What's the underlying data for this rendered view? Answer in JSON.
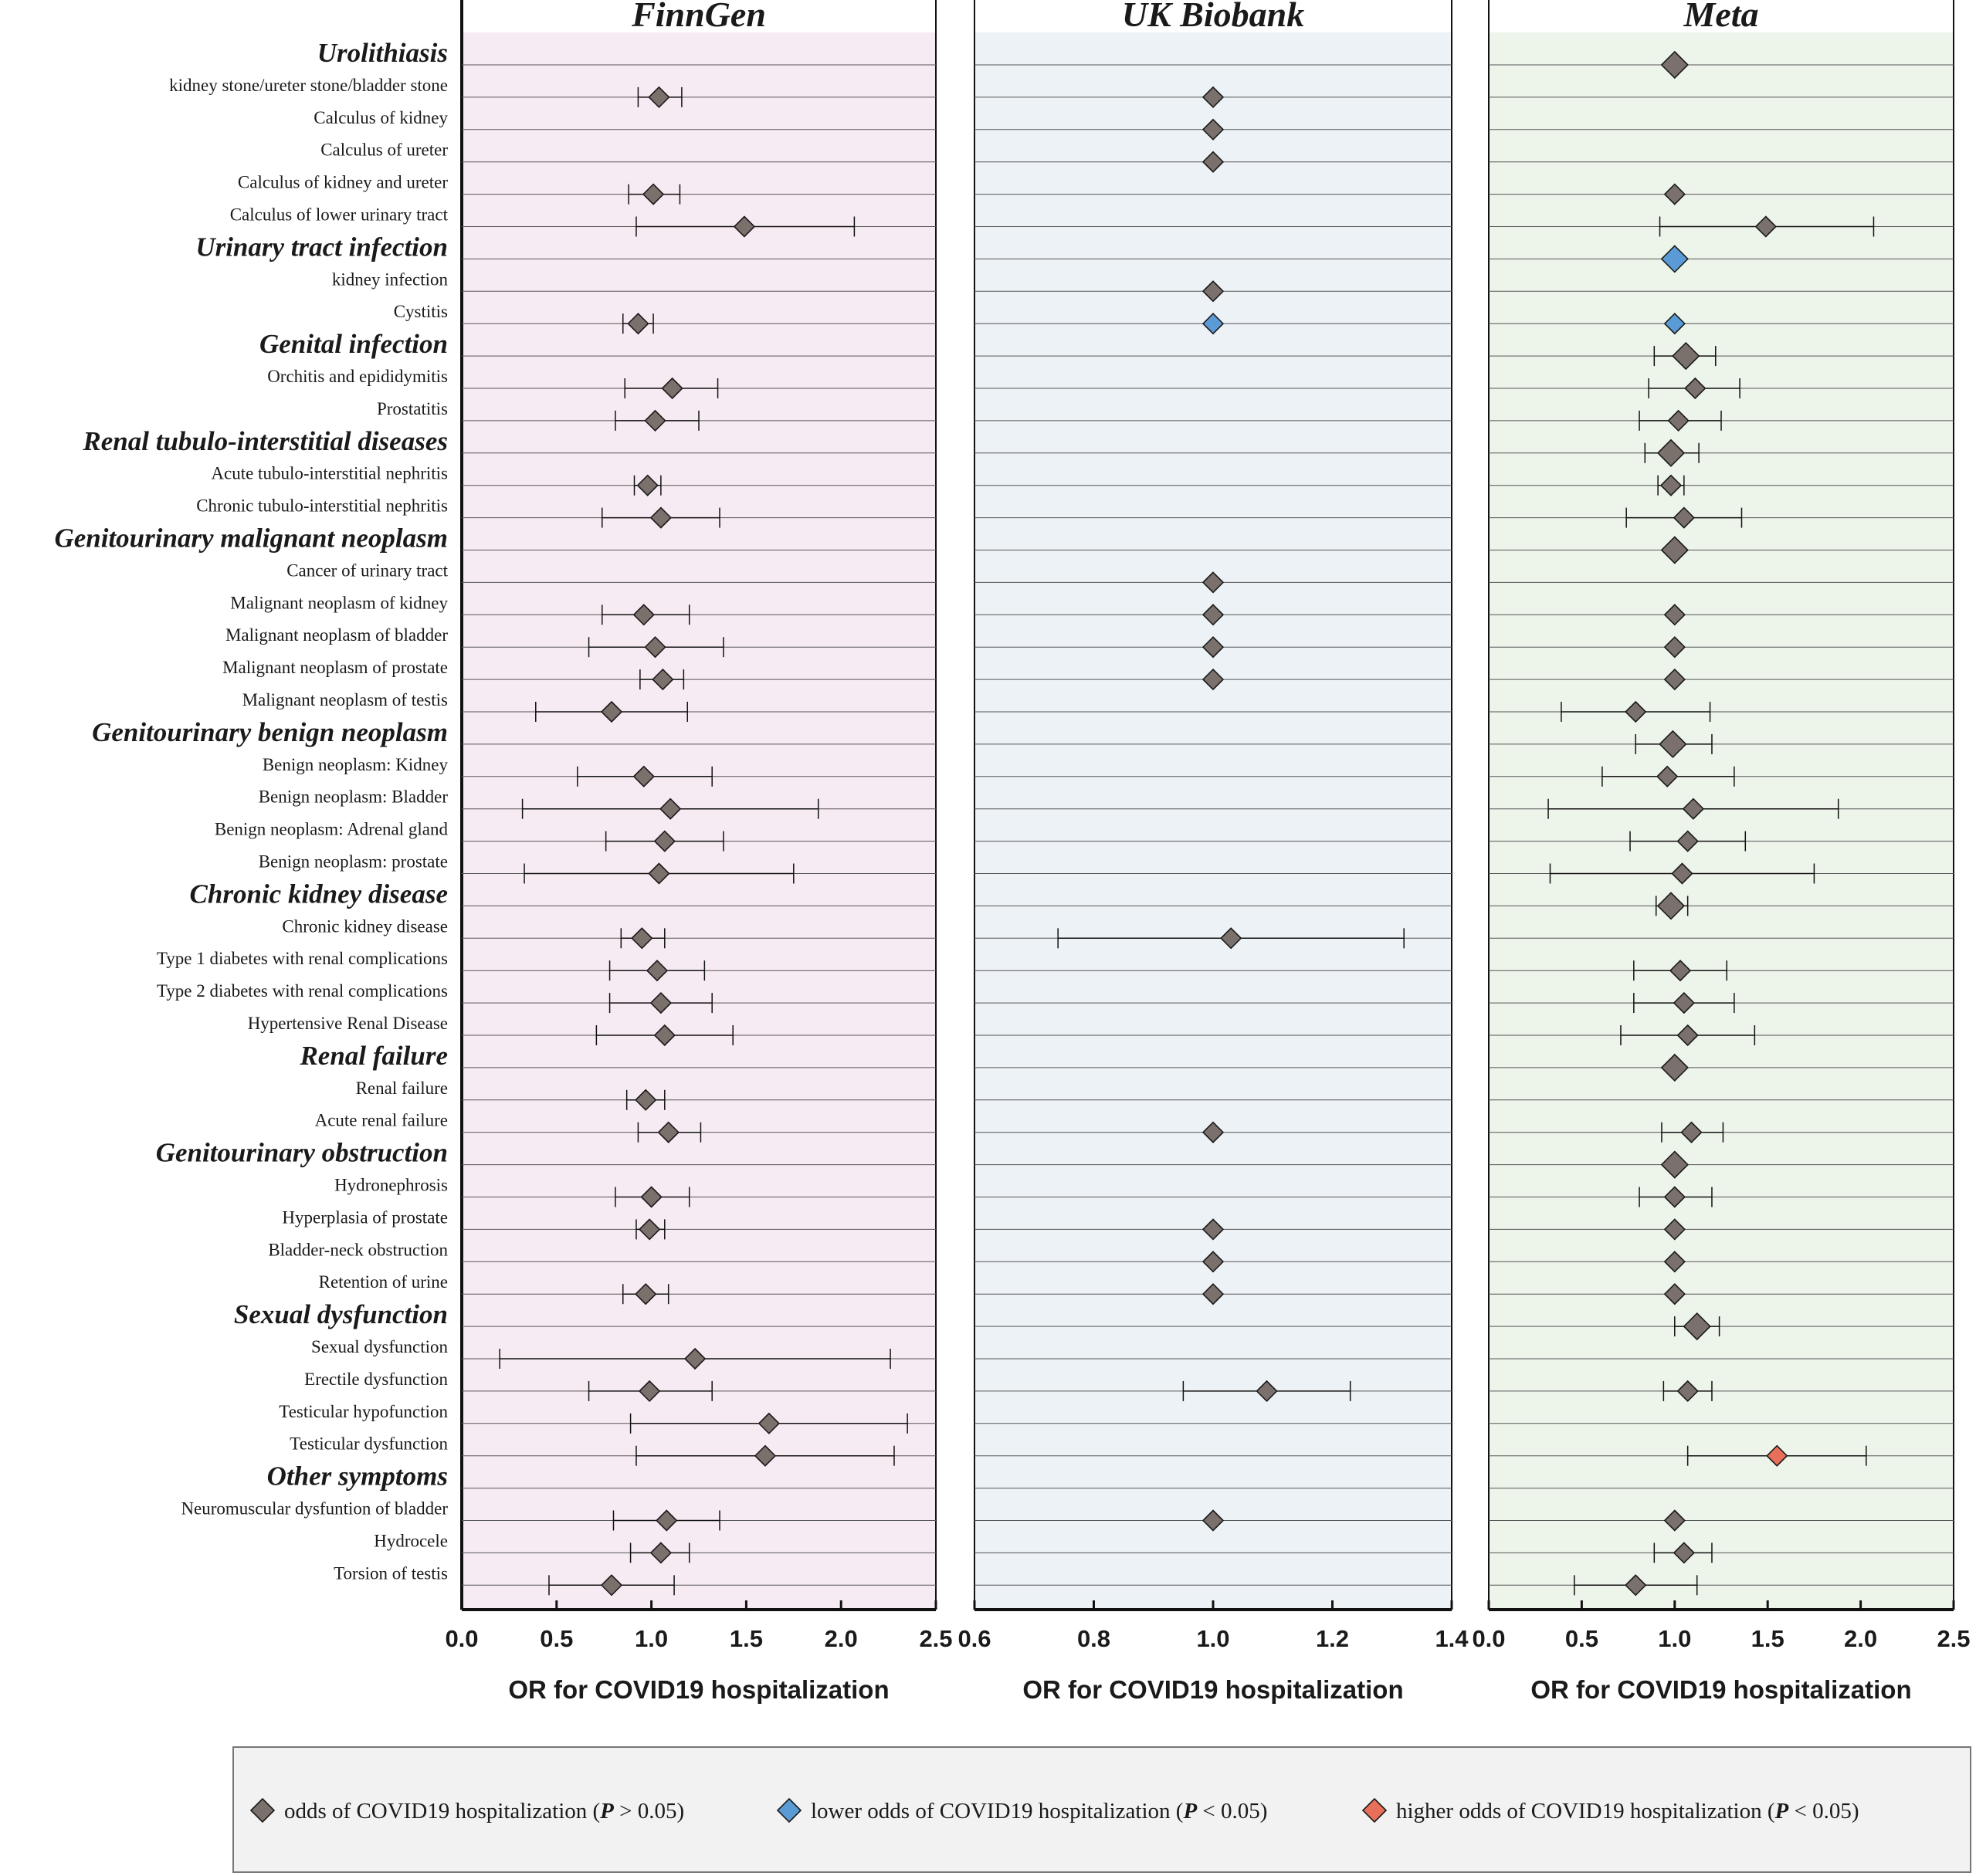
{
  "chart_data": {
    "type": "forest",
    "axis_title": "OR for COVID19 hospitalization",
    "colors": {
      "ns": "#7a716c",
      "lower": "#5b9bd5",
      "higher": "#e8705a",
      "panel_bg": [
        "#f7ebf3",
        "#ecf2f6",
        "#edf4ea"
      ],
      "legend_bg": "#f2f2f2"
    },
    "panels": [
      {
        "title": "FinnGen",
        "xlim": [
          0,
          2.5
        ],
        "ticks": [
          "0.0",
          "0.5",
          "1.0",
          "1.5",
          "2.0",
          "2.5"
        ]
      },
      {
        "title": "UK Biobank",
        "xlim": [
          0.6,
          1.4
        ],
        "ticks": [
          "0.6",
          "0.8",
          "1.0",
          "1.2",
          "1.4"
        ]
      },
      {
        "title": "Meta",
        "xlim": [
          0,
          2.5
        ],
        "ticks": [
          "0.0",
          "0.5",
          "1.0",
          "1.5",
          "2.0",
          "2.5"
        ]
      }
    ],
    "rows": [
      {
        "label": "Urolithiasis",
        "category": true,
        "data": [
          null,
          null,
          {
            "or": 1.0,
            "lo": 1.0,
            "hi": 1.0,
            "sig": "ns"
          }
        ]
      },
      {
        "label": "kidney stone/ureter stone/bladder stone",
        "data": [
          {
            "or": 1.04,
            "lo": 0.93,
            "hi": 1.16,
            "sig": "ns"
          },
          {
            "or": 1.0,
            "lo": 1.0,
            "hi": 1.0,
            "sig": "ns"
          },
          null
        ]
      },
      {
        "label": "Calculus of kidney",
        "data": [
          null,
          {
            "or": 1.0,
            "lo": 1.0,
            "hi": 1.0,
            "sig": "ns"
          },
          null
        ]
      },
      {
        "label": "Calculus of ureter",
        "data": [
          null,
          {
            "or": 1.0,
            "lo": 1.0,
            "hi": 1.0,
            "sig": "ns"
          },
          null
        ]
      },
      {
        "label": "Calculus of kidney and ureter",
        "data": [
          {
            "or": 1.01,
            "lo": 0.88,
            "hi": 1.15,
            "sig": "ns"
          },
          null,
          {
            "or": 1.0,
            "lo": 1.0,
            "hi": 1.0,
            "sig": "ns"
          }
        ]
      },
      {
        "label": "Calculus of lower urinary tract",
        "data": [
          {
            "or": 1.49,
            "lo": 0.92,
            "hi": 2.07,
            "sig": "ns"
          },
          null,
          {
            "or": 1.49,
            "lo": 0.92,
            "hi": 2.07,
            "sig": "ns"
          }
        ]
      },
      {
        "label": "Urinary tract infection",
        "category": true,
        "data": [
          null,
          null,
          {
            "or": 1.0,
            "lo": 1.0,
            "hi": 1.0,
            "sig": "lower"
          }
        ]
      },
      {
        "label": "kidney infection",
        "data": [
          null,
          {
            "or": 1.0,
            "lo": 1.0,
            "hi": 1.0,
            "sig": "ns"
          },
          null
        ]
      },
      {
        "label": "Cystitis",
        "data": [
          {
            "or": 0.93,
            "lo": 0.85,
            "hi": 1.01,
            "sig": "ns"
          },
          {
            "or": 1.0,
            "lo": 1.0,
            "hi": 1.0,
            "sig": "lower"
          },
          {
            "or": 1.0,
            "lo": 1.0,
            "hi": 1.0,
            "sig": "lower"
          }
        ]
      },
      {
        "label": "Genital infection",
        "category": true,
        "data": [
          null,
          null,
          {
            "or": 1.06,
            "lo": 0.89,
            "hi": 1.22,
            "sig": "ns"
          }
        ]
      },
      {
        "label": "Orchitis and epididymitis",
        "data": [
          {
            "or": 1.11,
            "lo": 0.86,
            "hi": 1.35,
            "sig": "ns"
          },
          null,
          {
            "or": 1.11,
            "lo": 0.86,
            "hi": 1.35,
            "sig": "ns"
          }
        ]
      },
      {
        "label": "Prostatitis",
        "data": [
          {
            "or": 1.02,
            "lo": 0.81,
            "hi": 1.25,
            "sig": "ns"
          },
          null,
          {
            "or": 1.02,
            "lo": 0.81,
            "hi": 1.25,
            "sig": "ns"
          }
        ]
      },
      {
        "label": "Renal tubulo-interstitial diseases",
        "category": true,
        "data": [
          null,
          null,
          {
            "or": 0.98,
            "lo": 0.84,
            "hi": 1.13,
            "sig": "ns"
          }
        ]
      },
      {
        "label": "Acute tubulo-interstitial nephritis",
        "data": [
          {
            "or": 0.98,
            "lo": 0.91,
            "hi": 1.05,
            "sig": "ns"
          },
          null,
          {
            "or": 0.98,
            "lo": 0.91,
            "hi": 1.05,
            "sig": "ns"
          }
        ]
      },
      {
        "label": "Chronic tubulo-interstitial nephritis",
        "data": [
          {
            "or": 1.05,
            "lo": 0.74,
            "hi": 1.36,
            "sig": "ns"
          },
          null,
          {
            "or": 1.05,
            "lo": 0.74,
            "hi": 1.36,
            "sig": "ns"
          }
        ]
      },
      {
        "label": "Genitourinary malignant neoplasm",
        "category": true,
        "data": [
          null,
          null,
          {
            "or": 1.0,
            "lo": 1.0,
            "hi": 1.0,
            "sig": "ns"
          }
        ]
      },
      {
        "label": "Cancer of urinary tract",
        "data": [
          null,
          {
            "or": 1.0,
            "lo": 1.0,
            "hi": 1.0,
            "sig": "ns"
          },
          null
        ]
      },
      {
        "label": "Malignant neoplasm of kidney",
        "data": [
          {
            "or": 0.96,
            "lo": 0.74,
            "hi": 1.2,
            "sig": "ns"
          },
          {
            "or": 1.0,
            "lo": 1.0,
            "hi": 1.0,
            "sig": "ns"
          },
          {
            "or": 1.0,
            "lo": 1.0,
            "hi": 1.0,
            "sig": "ns"
          }
        ]
      },
      {
        "label": "Malignant neoplasm of bladder",
        "data": [
          {
            "or": 1.02,
            "lo": 0.67,
            "hi": 1.38,
            "sig": "ns"
          },
          {
            "or": 1.0,
            "lo": 1.0,
            "hi": 1.0,
            "sig": "ns"
          },
          {
            "or": 1.0,
            "lo": 1.0,
            "hi": 1.0,
            "sig": "ns"
          }
        ]
      },
      {
        "label": "Malignant neoplasm of prostate",
        "data": [
          {
            "or": 1.06,
            "lo": 0.94,
            "hi": 1.17,
            "sig": "ns"
          },
          {
            "or": 1.0,
            "lo": 1.0,
            "hi": 1.0,
            "sig": "ns"
          },
          {
            "or": 1.0,
            "lo": 1.0,
            "hi": 1.0,
            "sig": "ns"
          }
        ]
      },
      {
        "label": "Malignant neoplasm of testis",
        "data": [
          {
            "or": 0.79,
            "lo": 0.39,
            "hi": 1.19,
            "sig": "ns"
          },
          null,
          {
            "or": 0.79,
            "lo": 0.39,
            "hi": 1.19,
            "sig": "ns"
          }
        ]
      },
      {
        "label": "Genitourinary benign neoplasm",
        "category": true,
        "data": [
          null,
          null,
          {
            "or": 0.99,
            "lo": 0.79,
            "hi": 1.2,
            "sig": "ns"
          }
        ]
      },
      {
        "label": "Benign neoplasm: Kidney",
        "data": [
          {
            "or": 0.96,
            "lo": 0.61,
            "hi": 1.32,
            "sig": "ns"
          },
          null,
          {
            "or": 0.96,
            "lo": 0.61,
            "hi": 1.32,
            "sig": "ns"
          }
        ]
      },
      {
        "label": "Benign neoplasm: Bladder",
        "data": [
          {
            "or": 1.1,
            "lo": 0.32,
            "hi": 1.88,
            "sig": "ns"
          },
          null,
          {
            "or": 1.1,
            "lo": 0.32,
            "hi": 1.88,
            "sig": "ns"
          }
        ]
      },
      {
        "label": "Benign neoplasm: Adrenal gland",
        "data": [
          {
            "or": 1.07,
            "lo": 0.76,
            "hi": 1.38,
            "sig": "ns"
          },
          null,
          {
            "or": 1.07,
            "lo": 0.76,
            "hi": 1.38,
            "sig": "ns"
          }
        ]
      },
      {
        "label": "Benign neoplasm: prostate",
        "data": [
          {
            "or": 1.04,
            "lo": 0.33,
            "hi": 1.75,
            "sig": "ns"
          },
          null,
          {
            "or": 1.04,
            "lo": 0.33,
            "hi": 1.75,
            "sig": "ns"
          }
        ]
      },
      {
        "label": "Chronic kidney disease",
        "category": true,
        "data": [
          null,
          null,
          {
            "or": 0.98,
            "lo": 0.9,
            "hi": 1.07,
            "sig": "ns"
          }
        ]
      },
      {
        "label": "Chronic kidney disease",
        "data": [
          {
            "or": 0.95,
            "lo": 0.84,
            "hi": 1.07,
            "sig": "ns"
          },
          {
            "or": 1.03,
            "lo": 0.74,
            "hi": 1.32,
            "sig": "ns"
          },
          null
        ]
      },
      {
        "label": "Type 1 diabetes with renal complications",
        "data": [
          {
            "or": 1.03,
            "lo": 0.78,
            "hi": 1.28,
            "sig": "ns"
          },
          null,
          {
            "or": 1.03,
            "lo": 0.78,
            "hi": 1.28,
            "sig": "ns"
          }
        ]
      },
      {
        "label": "Type 2 diabetes with renal complications",
        "data": [
          {
            "or": 1.05,
            "lo": 0.78,
            "hi": 1.32,
            "sig": "ns"
          },
          null,
          {
            "or": 1.05,
            "lo": 0.78,
            "hi": 1.32,
            "sig": "ns"
          }
        ]
      },
      {
        "label": "Hypertensive Renal Disease",
        "data": [
          {
            "or": 1.07,
            "lo": 0.71,
            "hi": 1.43,
            "sig": "ns"
          },
          null,
          {
            "or": 1.07,
            "lo": 0.71,
            "hi": 1.43,
            "sig": "ns"
          }
        ]
      },
      {
        "label": "Renal failure",
        "category": true,
        "data": [
          null,
          null,
          {
            "or": 1.0,
            "lo": 1.0,
            "hi": 1.0,
            "sig": "ns"
          }
        ]
      },
      {
        "label": "Renal failure",
        "data": [
          {
            "or": 0.97,
            "lo": 0.87,
            "hi": 1.07,
            "sig": "ns"
          },
          null,
          null
        ]
      },
      {
        "label": "Acute renal failure",
        "data": [
          {
            "or": 1.09,
            "lo": 0.93,
            "hi": 1.26,
            "sig": "ns"
          },
          {
            "or": 1.0,
            "lo": 1.0,
            "hi": 1.0,
            "sig": "ns"
          },
          {
            "or": 1.09,
            "lo": 0.93,
            "hi": 1.26,
            "sig": "ns"
          }
        ]
      },
      {
        "label": "Genitourinary obstruction",
        "category": true,
        "data": [
          null,
          null,
          {
            "or": 1.0,
            "lo": 1.0,
            "hi": 1.0,
            "sig": "ns"
          }
        ]
      },
      {
        "label": "Hydronephrosis",
        "data": [
          {
            "or": 1.0,
            "lo": 0.81,
            "hi": 1.2,
            "sig": "ns"
          },
          null,
          {
            "or": 1.0,
            "lo": 0.81,
            "hi": 1.2,
            "sig": "ns"
          }
        ]
      },
      {
        "label": "Hyperplasia of prostate",
        "data": [
          {
            "or": 0.99,
            "lo": 0.92,
            "hi": 1.07,
            "sig": "ns"
          },
          {
            "or": 1.0,
            "lo": 1.0,
            "hi": 1.0,
            "sig": "ns"
          },
          {
            "or": 1.0,
            "lo": 1.0,
            "hi": 1.0,
            "sig": "ns"
          }
        ]
      },
      {
        "label": "Bladder-neck obstruction",
        "data": [
          null,
          {
            "or": 1.0,
            "lo": 1.0,
            "hi": 1.0,
            "sig": "ns"
          },
          {
            "or": 1.0,
            "lo": 1.0,
            "hi": 1.0,
            "sig": "ns"
          }
        ]
      },
      {
        "label": "Retention of urine",
        "data": [
          {
            "or": 0.97,
            "lo": 0.85,
            "hi": 1.09,
            "sig": "ns"
          },
          {
            "or": 1.0,
            "lo": 1.0,
            "hi": 1.0,
            "sig": "ns"
          },
          {
            "or": 1.0,
            "lo": 1.0,
            "hi": 1.0,
            "sig": "ns"
          }
        ]
      },
      {
        "label": "Sexual dysfunction",
        "category": true,
        "data": [
          null,
          null,
          {
            "or": 1.12,
            "lo": 1.0,
            "hi": 1.24,
            "sig": "ns"
          }
        ]
      },
      {
        "label": "Sexual dysfunction",
        "data": [
          {
            "or": 1.23,
            "lo": 0.2,
            "hi": 2.26,
            "sig": "ns"
          },
          null,
          null
        ]
      },
      {
        "label": "Erectile dysfunction",
        "data": [
          {
            "or": 0.99,
            "lo": 0.67,
            "hi": 1.32,
            "sig": "ns"
          },
          {
            "or": 1.09,
            "lo": 0.95,
            "hi": 1.23,
            "sig": "ns"
          },
          {
            "or": 1.07,
            "lo": 0.94,
            "hi": 1.2,
            "sig": "ns"
          }
        ]
      },
      {
        "label": "Testicular hypofunction",
        "data": [
          {
            "or": 1.62,
            "lo": 0.89,
            "hi": 2.35,
            "sig": "ns"
          },
          null,
          null
        ]
      },
      {
        "label": "Testicular dysfunction",
        "data": [
          {
            "or": 1.6,
            "lo": 0.92,
            "hi": 2.28,
            "sig": "ns"
          },
          null,
          {
            "or": 1.55,
            "lo": 1.07,
            "hi": 2.03,
            "sig": "higher"
          }
        ]
      },
      {
        "label": "Other symptoms",
        "category": true,
        "data": [
          null,
          null,
          null
        ]
      },
      {
        "label": "Neuromuscular dysfuntion of bladder",
        "data": [
          {
            "or": 1.08,
            "lo": 0.8,
            "hi": 1.36,
            "sig": "ns"
          },
          {
            "or": 1.0,
            "lo": 1.0,
            "hi": 1.0,
            "sig": "ns"
          },
          {
            "or": 1.0,
            "lo": 1.0,
            "hi": 1.0,
            "sig": "ns"
          }
        ]
      },
      {
        "label": "Hydrocele",
        "data": [
          {
            "or": 1.05,
            "lo": 0.89,
            "hi": 1.2,
            "sig": "ns"
          },
          null,
          {
            "or": 1.05,
            "lo": 0.89,
            "hi": 1.2,
            "sig": "ns"
          }
        ]
      },
      {
        "label": "Torsion of testis",
        "data": [
          {
            "or": 0.79,
            "lo": 0.46,
            "hi": 1.12,
            "sig": "ns"
          },
          null,
          {
            "or": 0.79,
            "lo": 0.46,
            "hi": 1.12,
            "sig": "ns"
          }
        ]
      }
    ],
    "legend": [
      {
        "key": "ns",
        "text": "odds of COVID19 hospitalization (",
        "p": "P",
        "suffix": " > 0.05)"
      },
      {
        "key": "lower",
        "text": "lower odds of COVID19 hospitalization (",
        "p": "P",
        "suffix": " < 0.05)"
      },
      {
        "key": "higher",
        "text": "higher odds of COVID19 hospitalization (",
        "p": "P",
        "suffix": " < 0.05)"
      }
    ]
  }
}
